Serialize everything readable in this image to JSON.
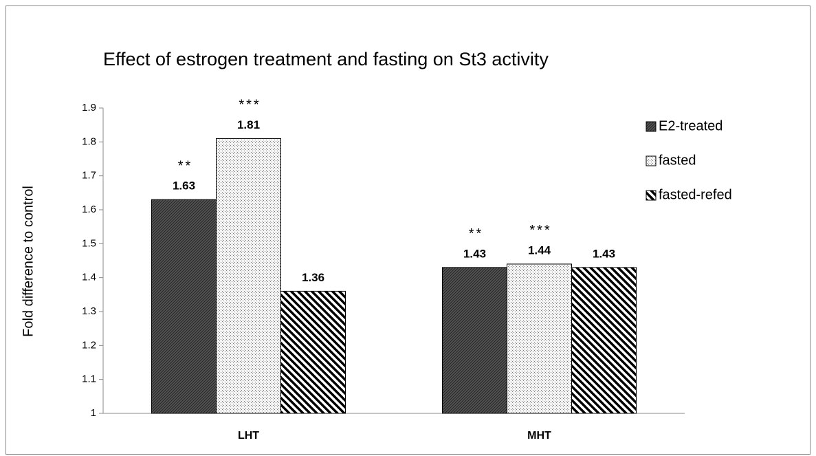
{
  "chart_data": {
    "type": "bar",
    "title": "Effect of estrogen treatment and fasting on St3 activity",
    "y_label": "Fold difference to control",
    "categories": [
      "LHT",
      "MHT"
    ],
    "series": [
      {
        "name": "E2-treated",
        "color": "#555555",
        "pattern": "crosshatch",
        "values": [
          1.63,
          1.43
        ],
        "annotations": [
          "**",
          "**"
        ]
      },
      {
        "name": "fasted",
        "color": "#f4f4f4",
        "pattern": "dots",
        "values": [
          1.81,
          1.44
        ],
        "annotations": [
          "***",
          "***"
        ]
      },
      {
        "name": "fasted-refed",
        "color": "#000000",
        "pattern": "stripes",
        "values": [
          1.36,
          1.43
        ],
        "annotations": [
          null,
          null
        ]
      }
    ],
    "ylim": [
      1,
      1.9
    ],
    "yticks": [
      1,
      1.1,
      1.2,
      1.3,
      1.4,
      1.5,
      1.6,
      1.7,
      1.8,
      1.9
    ],
    "grid": false,
    "legend": "right"
  }
}
